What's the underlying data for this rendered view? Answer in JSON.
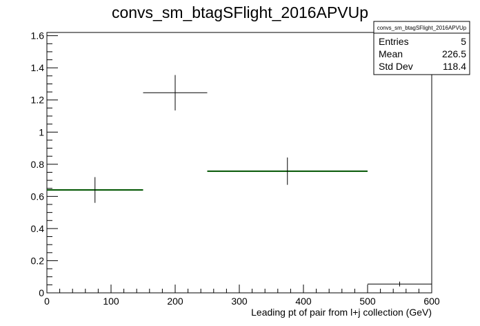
{
  "chart_data": {
    "type": "histogram",
    "title": "convs_sm_btagSFlight_2016APVUp",
    "xlabel": "Leading pt of pair from l+j collection (GeV)",
    "ylabel": "",
    "xlim": [
      0,
      600
    ],
    "ylim": [
      0,
      1.62
    ],
    "x_ticks": [
      "0",
      "100",
      "200",
      "300",
      "400",
      "500",
      "600"
    ],
    "y_ticks": [
      "0",
      "0.2",
      "0.4",
      "0.6",
      "0.8",
      "1",
      "1.2",
      "1.4",
      "1.6"
    ],
    "bins": [
      {
        "x_low": 0,
        "x_high": 150,
        "x_center": 75,
        "value": 0.64,
        "err": 0.08
      },
      {
        "x_low": 150,
        "x_high": 250,
        "x_center": 200,
        "value": 1.245,
        "err": 0.11
      },
      {
        "x_low": 250,
        "x_high": 500,
        "x_center": 375,
        "value": 0.757,
        "err": 0.085
      },
      {
        "x_low": 500,
        "x_high": 600,
        "x_center": 550,
        "value": 0.055,
        "err": 0.015
      }
    ],
    "fit_segments": [
      {
        "x_low": 0,
        "x_high": 150,
        "value": 0.64
      },
      {
        "x_low": 250,
        "x_high": 500,
        "value": 0.757
      }
    ],
    "colors": {
      "markers": "#000000",
      "fit": "#00aa00"
    },
    "stats_box": {
      "name": "convs_sm_btagSFlight_2016APVUp",
      "rows": [
        {
          "label": "Entries",
          "value": "5"
        },
        {
          "label": "Mean",
          "value": "226.5"
        },
        {
          "label": "Std Dev",
          "value": "118.4"
        }
      ]
    }
  }
}
